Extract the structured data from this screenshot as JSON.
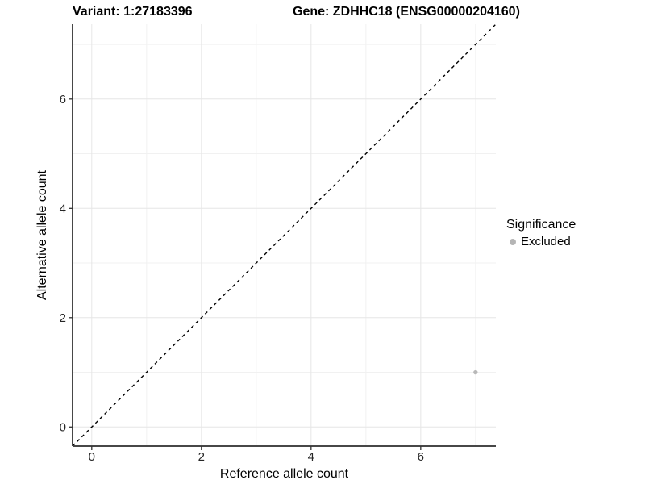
{
  "figure": {
    "title_variant": "Variant: 1:27183396",
    "title_gene": "Gene: ZDHHC18 (ENSG00000204160)"
  },
  "chart_data": {
    "type": "scatter",
    "title": "Variant: 1:27183396   Gene: ZDHHC18 (ENSG00000204160)",
    "titles": {
      "variant": "Variant: 1:27183396",
      "gene": "Gene: ZDHHC18 (ENSG00000204160)"
    },
    "xlabel": "Reference allele count",
    "ylabel": "Alternative allele count",
    "xlim": [
      -0.35,
      7.37
    ],
    "ylim": [
      -0.35,
      7.37
    ],
    "xticks": [
      0,
      2,
      4,
      6
    ],
    "yticks": [
      0,
      2,
      4,
      6
    ],
    "xminor": [
      1,
      3,
      5,
      7
    ],
    "yminor": [
      1,
      3,
      5,
      7
    ],
    "grid": "major+minor",
    "series": [
      {
        "name": "Excluded",
        "color": "#b8b8b8",
        "points": [
          {
            "x": 7,
            "y": 1
          }
        ]
      }
    ],
    "reference_line": {
      "kind": "identity",
      "slope": 1,
      "intercept": 0,
      "style": "dashed",
      "color": "#000000"
    },
    "legend": {
      "title": "Significance",
      "position": "right",
      "entries": [
        {
          "label": "Excluded",
          "color": "#b5b5b5",
          "marker": "circle"
        }
      ]
    },
    "style": {
      "background": "#ffffff",
      "grid_major": "#e6e6e6",
      "grid_minor": "#f1f1f1",
      "axis_line": "#474747",
      "tick_mark": "#333333",
      "tick_label_color": "#262626",
      "text_color": "#000000"
    }
  }
}
